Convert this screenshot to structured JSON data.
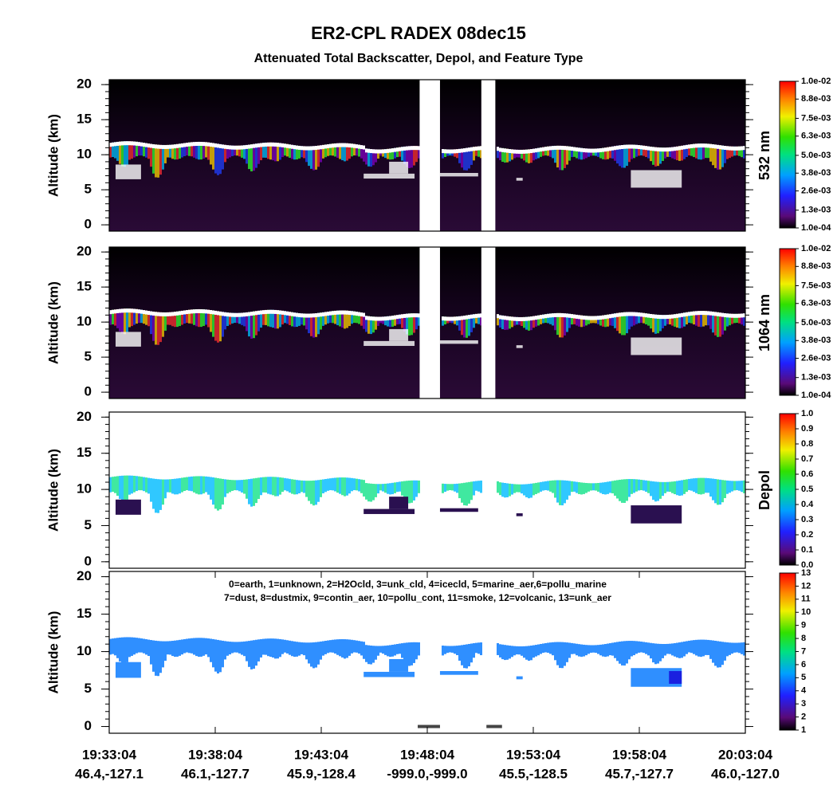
{
  "title": "ER2-CPL RADEX 08dec15",
  "subtitle": "Attenuated Total Backscatter, Depol, and Feature Type",
  "chart_data": [
    {
      "type": "heatmap",
      "y_label": "Altitude (km)",
      "ylim": [
        -0.9,
        20.7
      ],
      "yticks": [
        0,
        5,
        10,
        15,
        20
      ],
      "background": "#000000",
      "side_label": "532 nm",
      "colorbar": {
        "lim": [
          0.0001,
          0.01
        ],
        "ticks": [
          {
            "value": 0.0001,
            "label": "1.0e-04"
          },
          {
            "value": 0.0013,
            "label": "1.3e-03"
          },
          {
            "value": 0.0026,
            "label": "2.6e-03"
          },
          {
            "value": 0.0038,
            "label": "3.8e-03"
          },
          {
            "value": 0.005,
            "label": "5.0e-03"
          },
          {
            "value": 0.0063,
            "label": "6.3e-03"
          },
          {
            "value": 0.0075,
            "label": "7.5e-03"
          },
          {
            "value": 0.0088,
            "label": "8.8e-03"
          },
          {
            "value": 0.01,
            "label": "1.0e-02"
          }
        ]
      }
    },
    {
      "type": "heatmap",
      "y_label": "Altitude (km)",
      "ylim": [
        -0.9,
        20.7
      ],
      "yticks": [
        0,
        5,
        10,
        15,
        20
      ],
      "background": "#000000",
      "side_label": "1064 nm",
      "colorbar": {
        "lim": [
          0.0001,
          0.01
        ],
        "ticks": [
          {
            "value": 0.0001,
            "label": "1.0e-04"
          },
          {
            "value": 0.0013,
            "label": "1.3e-03"
          },
          {
            "value": 0.0026,
            "label": "2.6e-03"
          },
          {
            "value": 0.0038,
            "label": "3.8e-03"
          },
          {
            "value": 0.005,
            "label": "5.0e-03"
          },
          {
            "value": 0.0063,
            "label": "6.3e-03"
          },
          {
            "value": 0.0075,
            "label": "7.5e-03"
          },
          {
            "value": 0.0088,
            "label": "8.8e-03"
          },
          {
            "value": 0.01,
            "label": "1.0e-02"
          }
        ]
      }
    },
    {
      "type": "heatmap",
      "y_label": "Altitude (km)",
      "ylim": [
        -0.9,
        20.7
      ],
      "yticks": [
        0,
        5,
        10,
        15,
        20
      ],
      "background": "#ffffff",
      "side_label": "Depol",
      "colorbar": {
        "lim": [
          0,
          1
        ],
        "ticks": [
          {
            "value": 0,
            "label": "0.0"
          },
          0.1,
          0.2,
          0.3,
          0.4,
          0.5,
          0.6,
          0.7,
          0.8,
          0.9,
          {
            "value": 1,
            "label": "1.0"
          }
        ]
      }
    },
    {
      "type": "heatmap",
      "y_label": "Altitude (km)",
      "ylim": [
        -0.9,
        20.7
      ],
      "yticks": [
        0,
        5,
        10,
        15,
        20
      ],
      "background": "#ffffff",
      "legend_text": [
        "0=earth, 1=unknown, 2=H2Ocld, 3=unk_cld, 4=icecld, 5=marine_aer,6=pollu_marine",
        "7=dust, 8=dustmix, 9=contin_aer, 10=pollu_cont, 11=smoke, 12=volcanic, 13=unk_aer"
      ],
      "colorbar": {
        "lim": [
          1,
          13
        ],
        "ticks": [
          1,
          2,
          3,
          4,
          5,
          6,
          7,
          8,
          9,
          10,
          11,
          12,
          13
        ]
      },
      "x_tick_labels": [
        {
          "time": "19:33:04",
          "location": "46.4,-127.1"
        },
        {
          "time": "19:38:04",
          "location": "46.1,-127.7"
        },
        {
          "time": "19:43:04",
          "location": "45.9,-128.4"
        },
        {
          "time": "19:48:04",
          "location": "-999.0,-999.0"
        },
        {
          "time": "19:53:04",
          "location": "45.5,-128.5"
        },
        {
          "time": "19:58:04",
          "location": "45.7,-127.7"
        },
        {
          "time": "20:03:04",
          "location": "46.0,-127.0"
        }
      ]
    }
  ]
}
